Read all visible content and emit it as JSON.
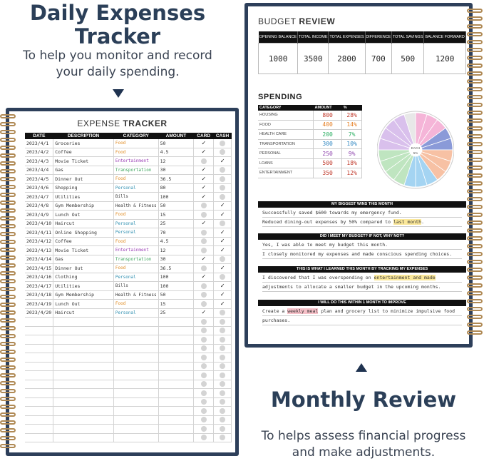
{
  "left_heading": {
    "title_line1": "Daily Expenses",
    "title_line2": "Tracker",
    "sub_line1": "To help you monitor and record",
    "sub_line2": "your daily spending."
  },
  "right_heading": {
    "title": "Monthly Review",
    "sub_line1": "To helps assess financial progress",
    "sub_line2": "and make adjustments."
  },
  "expense_tracker": {
    "title_light": "EXPENSE ",
    "title_bold": "TRACKER",
    "headers": [
      "DATE",
      "DESCRIPTION",
      "CATEGORY",
      "AMOUNT",
      "CARD",
      "CASH"
    ],
    "rows": [
      {
        "date": "2023/4/1",
        "desc": "Groceries",
        "cat": "Food",
        "amount": "50",
        "card": true,
        "cash": false,
        "color": "#e08a1e"
      },
      {
        "date": "2023/4/2",
        "desc": "Coffee",
        "cat": "Food",
        "amount": "4.5",
        "card": true,
        "cash": false,
        "color": "#e08a1e"
      },
      {
        "date": "2023/4/3",
        "desc": "Movie Ticket",
        "cat": "Entertainment",
        "amount": "12",
        "card": false,
        "cash": true,
        "color": "#9b3fb5"
      },
      {
        "date": "2023/4/4",
        "desc": "Gas",
        "cat": "Transportation",
        "amount": "30",
        "card": true,
        "cash": false,
        "color": "#3aa55a"
      },
      {
        "date": "2023/4/5",
        "desc": "Dinner Out",
        "cat": "Food",
        "amount": "36.5",
        "card": true,
        "cash": false,
        "color": "#e08a1e"
      },
      {
        "date": "2023/4/6",
        "desc": "Shopping",
        "cat": "Personal",
        "amount": "80",
        "card": true,
        "cash": false,
        "color": "#2f8fb0"
      },
      {
        "date": "2023/4/7",
        "desc": "Utilities",
        "cat": "Bills",
        "amount": "100",
        "card": true,
        "cash": false,
        "color": "#444444"
      },
      {
        "date": "2023/4/8",
        "desc": "Gym Membership",
        "cat": "Health & Fitness",
        "amount": "50",
        "card": false,
        "cash": true,
        "color": "#333333"
      },
      {
        "date": "2023/4/9",
        "desc": "Lunch Out",
        "cat": "Food",
        "amount": "15",
        "card": false,
        "cash": true,
        "color": "#e08a1e"
      },
      {
        "date": "2023/4/10",
        "desc": "Haircut",
        "cat": "Personal",
        "amount": "25",
        "card": true,
        "cash": false,
        "color": "#2f8fb0"
      },
      {
        "date": "2023/4/11",
        "desc": "Online Shopping",
        "cat": "Personal",
        "amount": "70",
        "card": false,
        "cash": true,
        "color": "#2f8fb0"
      },
      {
        "date": "2023/4/12",
        "desc": "Coffee",
        "cat": "Food",
        "amount": "4.5",
        "card": false,
        "cash": true,
        "color": "#e08a1e"
      },
      {
        "date": "2023/4/13",
        "desc": "Movie Ticket",
        "cat": "Entertainment",
        "amount": "12",
        "card": false,
        "cash": true,
        "color": "#9b3fb5"
      },
      {
        "date": "2023/4/14",
        "desc": "Gas",
        "cat": "Transportation",
        "amount": "30",
        "card": true,
        "cash": false,
        "color": "#3aa55a"
      },
      {
        "date": "2023/4/15",
        "desc": "Dinner Out",
        "cat": "Food",
        "amount": "36.5",
        "card": false,
        "cash": true,
        "color": "#e08a1e"
      },
      {
        "date": "2023/4/16",
        "desc": "Clothing",
        "cat": "Personal",
        "amount": "100",
        "card": true,
        "cash": false,
        "color": "#2f8fb0"
      },
      {
        "date": "2023/4/17",
        "desc": "Utilities",
        "cat": "Bills",
        "amount": "100",
        "card": false,
        "cash": true,
        "color": "#444444"
      },
      {
        "date": "2023/4/18",
        "desc": "Gym Membership",
        "cat": "Health & Fitness",
        "amount": "50",
        "card": false,
        "cash": true,
        "color": "#333333"
      },
      {
        "date": "2023/4/19",
        "desc": "Lunch Out",
        "cat": "Food",
        "amount": "15",
        "card": false,
        "cash": true,
        "color": "#e08a1e"
      },
      {
        "date": "2023/4/20",
        "desc": "Haircut",
        "cat": "Personal",
        "amount": "25",
        "card": true,
        "cash": false,
        "color": "#2f8fb0"
      }
    ],
    "empty_rows": 14
  },
  "budget_review": {
    "title_light": "BUDGET ",
    "title_bold": "REVIEW",
    "headers": [
      "OPENING BALANCE",
      "TOTAL INCOME",
      "TOTAL EXPENSES",
      "DIFFERENCE",
      "TOTAL SAVINGS",
      "BALANCE FORWARD"
    ],
    "values": [
      "1000",
      "3500",
      "2800",
      "700",
      "500",
      "1200"
    ]
  },
  "spending": {
    "title": "SPENDING",
    "headers": [
      "CATEGORY",
      "AMOUNT",
      "%"
    ],
    "rows": [
      {
        "cat": "HOUSING",
        "amount": "800",
        "pct": "28%",
        "color": "#c0392b"
      },
      {
        "cat": "FOOD",
        "amount": "400",
        "pct": "14%",
        "color": "#e67e22"
      },
      {
        "cat": "HEALTH CARE",
        "amount": "200",
        "pct": "7%",
        "color": "#27ae60"
      },
      {
        "cat": "TRANSPORTATION",
        "amount": "300",
        "pct": "10%",
        "color": "#2e86c1"
      },
      {
        "cat": "PERSONAL",
        "amount": "250",
        "pct": "9%",
        "color": "#8e44ad"
      },
      {
        "cat": "LOANS",
        "amount": "500",
        "pct": "18%",
        "color": "#c0392b"
      },
      {
        "cat": "ENTERTAINMENT",
        "amount": "350",
        "pct": "12%",
        "color": "#c0392b"
      }
    ],
    "pie_center_line1": "EACH",
    "pie_center_line2": "5%"
  },
  "sections": [
    {
      "header": "MY BIGGEST WINS THIS MONTH",
      "lines": [
        [
          {
            "t": "Successfully saved $600 towards my emergency fund."
          }
        ],
        [
          {
            "t": "Reduced dining-out expenses by 50% compared to "
          },
          {
            "t": "last month",
            "hl": "y"
          },
          {
            "t": "."
          }
        ]
      ]
    },
    {
      "header": "DID I MEET MY BUDGET? IF NOT, WHY NOT?",
      "lines": [
        [
          {
            "t": "Yes, I was able to meet my budget this month."
          }
        ],
        [
          {
            "t": "I closely monitored my expenses and made conscious spending choices."
          }
        ]
      ]
    },
    {
      "header": "THIS IS WHAT I LEARNED THIS MONTH BY TRACKING MY EXPENSES",
      "lines": [
        [
          {
            "t": "I discovered that I was overspending on "
          },
          {
            "t": "entertainment and made",
            "hl": "y"
          }
        ],
        [
          {
            "t": "adjustments to allocate a smaller budget in the upcoming months."
          }
        ]
      ]
    },
    {
      "header": "I WILL DO THIS WITHIN 1 MONTH TO IMPROVE",
      "lines": [
        [
          {
            "t": "Create a "
          },
          {
            "t": "weekly meal",
            "hl": "p"
          },
          {
            "t": " plan and grocery list to minimize impulsive food"
          }
        ],
        [
          {
            "t": "purchases."
          }
        ]
      ]
    }
  ]
}
